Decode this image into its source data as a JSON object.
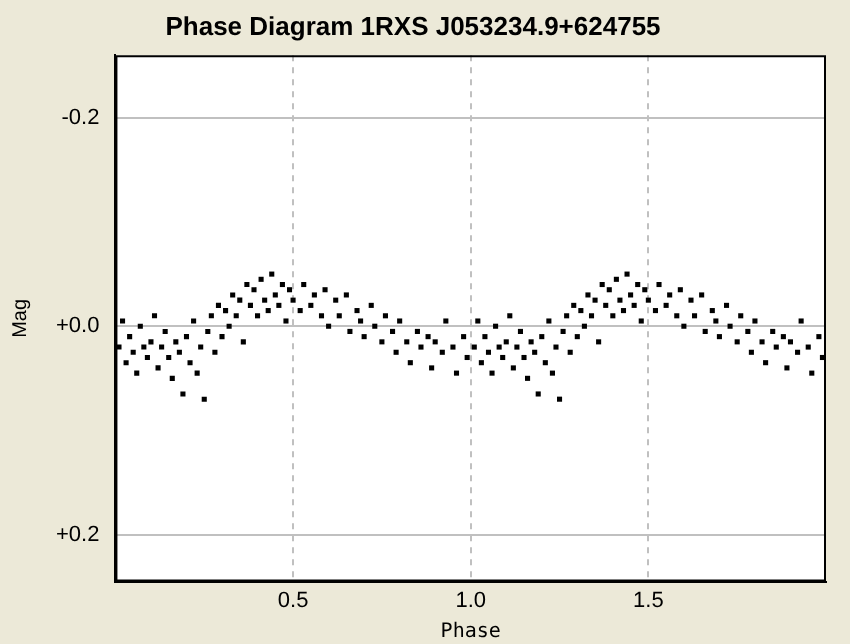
{
  "chart_data": {
    "type": "scatter",
    "title": "Phase Diagram 1RXS J053234.9+624755",
    "xlabel": "Phase",
    "ylabel": "Mag",
    "x": [
      0.01,
      0.02,
      0.03,
      0.04,
      0.05,
      0.06,
      0.07,
      0.08,
      0.09,
      0.1,
      0.11,
      0.12,
      0.13,
      0.14,
      0.15,
      0.16,
      0.17,
      0.18,
      0.19,
      0.2,
      0.21,
      0.22,
      0.23,
      0.24,
      0.25,
      0.26,
      0.27,
      0.28,
      0.29,
      0.3,
      0.31,
      0.32,
      0.33,
      0.34,
      0.35,
      0.36,
      0.37,
      0.38,
      0.39,
      0.4,
      0.41,
      0.42,
      0.43,
      0.44,
      0.45,
      0.46,
      0.47,
      0.48,
      0.49,
      0.5,
      0.52,
      0.53,
      0.55,
      0.56,
      0.58,
      0.59,
      0.6,
      0.62,
      0.63,
      0.65,
      0.66,
      0.68,
      0.69,
      0.7,
      0.72,
      0.73,
      0.75,
      0.76,
      0.78,
      0.79,
      0.8,
      0.82,
      0.83,
      0.85,
      0.86,
      0.88,
      0.89,
      0.9,
      0.92,
      0.93,
      0.95,
      0.96,
      0.98,
      0.99,
      1.01,
      1.02,
      1.03,
      1.04,
      1.05,
      1.06,
      1.07,
      1.08,
      1.09,
      1.1,
      1.11,
      1.12,
      1.13,
      1.14,
      1.15,
      1.16,
      1.17,
      1.18,
      1.19,
      1.2,
      1.21,
      1.22,
      1.23,
      1.24,
      1.25,
      1.26,
      1.27,
      1.28,
      1.29,
      1.3,
      1.31,
      1.32,
      1.33,
      1.34,
      1.35,
      1.36,
      1.37,
      1.38,
      1.39,
      1.4,
      1.41,
      1.42,
      1.43,
      1.44,
      1.45,
      1.46,
      1.47,
      1.48,
      1.49,
      1.5,
      1.52,
      1.53,
      1.55,
      1.56,
      1.58,
      1.59,
      1.6,
      1.62,
      1.63,
      1.65,
      1.66,
      1.68,
      1.69,
      1.7,
      1.72,
      1.73,
      1.75,
      1.76,
      1.78,
      1.79,
      1.8,
      1.82,
      1.83,
      1.85,
      1.86,
      1.88,
      1.89,
      1.9,
      1.92,
      1.93,
      1.95,
      1.96,
      1.98,
      1.99
    ],
    "values": [
      0.02,
      -0.005,
      0.035,
      0.01,
      0.025,
      0.045,
      0.0,
      0.02,
      0.03,
      0.015,
      -0.01,
      0.04,
      0.02,
      0.005,
      0.03,
      0.05,
      0.015,
      0.025,
      0.065,
      0.01,
      0.035,
      -0.005,
      0.045,
      0.02,
      0.07,
      0.005,
      -0.01,
      0.025,
      -0.02,
      0.01,
      -0.015,
      0.0,
      -0.03,
      -0.01,
      -0.025,
      0.015,
      -0.04,
      -0.02,
      -0.035,
      -0.01,
      -0.045,
      -0.025,
      -0.015,
      -0.05,
      -0.03,
      -0.02,
      -0.04,
      -0.005,
      -0.035,
      -0.025,
      -0.015,
      -0.04,
      -0.02,
      -0.03,
      -0.01,
      -0.035,
      0.0,
      -0.025,
      -0.01,
      -0.03,
      0.005,
      -0.015,
      -0.005,
      0.01,
      -0.02,
      0.0,
      0.015,
      -0.01,
      0.005,
      0.025,
      -0.005,
      0.015,
      0.035,
      0.005,
      0.02,
      0.01,
      0.04,
      0.015,
      0.025,
      -0.005,
      0.02,
      0.045,
      0.01,
      0.03,
      0.02,
      -0.005,
      0.035,
      0.01,
      0.025,
      0.045,
      0.0,
      0.02,
      0.03,
      0.015,
      -0.01,
      0.04,
      0.02,
      0.005,
      0.03,
      0.05,
      0.015,
      0.025,
      0.065,
      0.01,
      0.035,
      -0.005,
      0.045,
      0.02,
      0.07,
      0.005,
      -0.01,
      0.025,
      -0.02,
      0.01,
      -0.015,
      0.0,
      -0.03,
      -0.01,
      -0.025,
      0.015,
      -0.04,
      -0.02,
      -0.035,
      -0.01,
      -0.045,
      -0.025,
      -0.015,
      -0.05,
      -0.03,
      -0.02,
      -0.04,
      -0.005,
      -0.035,
      -0.025,
      -0.015,
      -0.04,
      -0.02,
      -0.03,
      -0.01,
      -0.035,
      0.0,
      -0.025,
      -0.01,
      -0.03,
      0.005,
      -0.015,
      -0.005,
      0.01,
      -0.02,
      0.0,
      0.015,
      -0.01,
      0.005,
      0.025,
      -0.005,
      0.015,
      0.035,
      0.005,
      0.02,
      0.01,
      0.04,
      0.015,
      0.025,
      -0.005,
      0.02,
      0.045,
      0.01,
      0.03
    ],
    "color": "#000000",
    "marker": "square",
    "xlim": [
      0,
      2
    ],
    "xticks": [
      0.5,
      {
        "value": 1,
        "label": "1.0"
      },
      1.5
    ],
    "ylim": [
      0.245,
      -0.26
    ],
    "yticks": [
      {
        "value": -0.2,
        "label": "-0.2"
      },
      {
        "value": 0,
        "label": "+0.0"
      },
      {
        "value": 0.2,
        "label": "+0.2"
      }
    ],
    "grid": true,
    "legend": false
  }
}
